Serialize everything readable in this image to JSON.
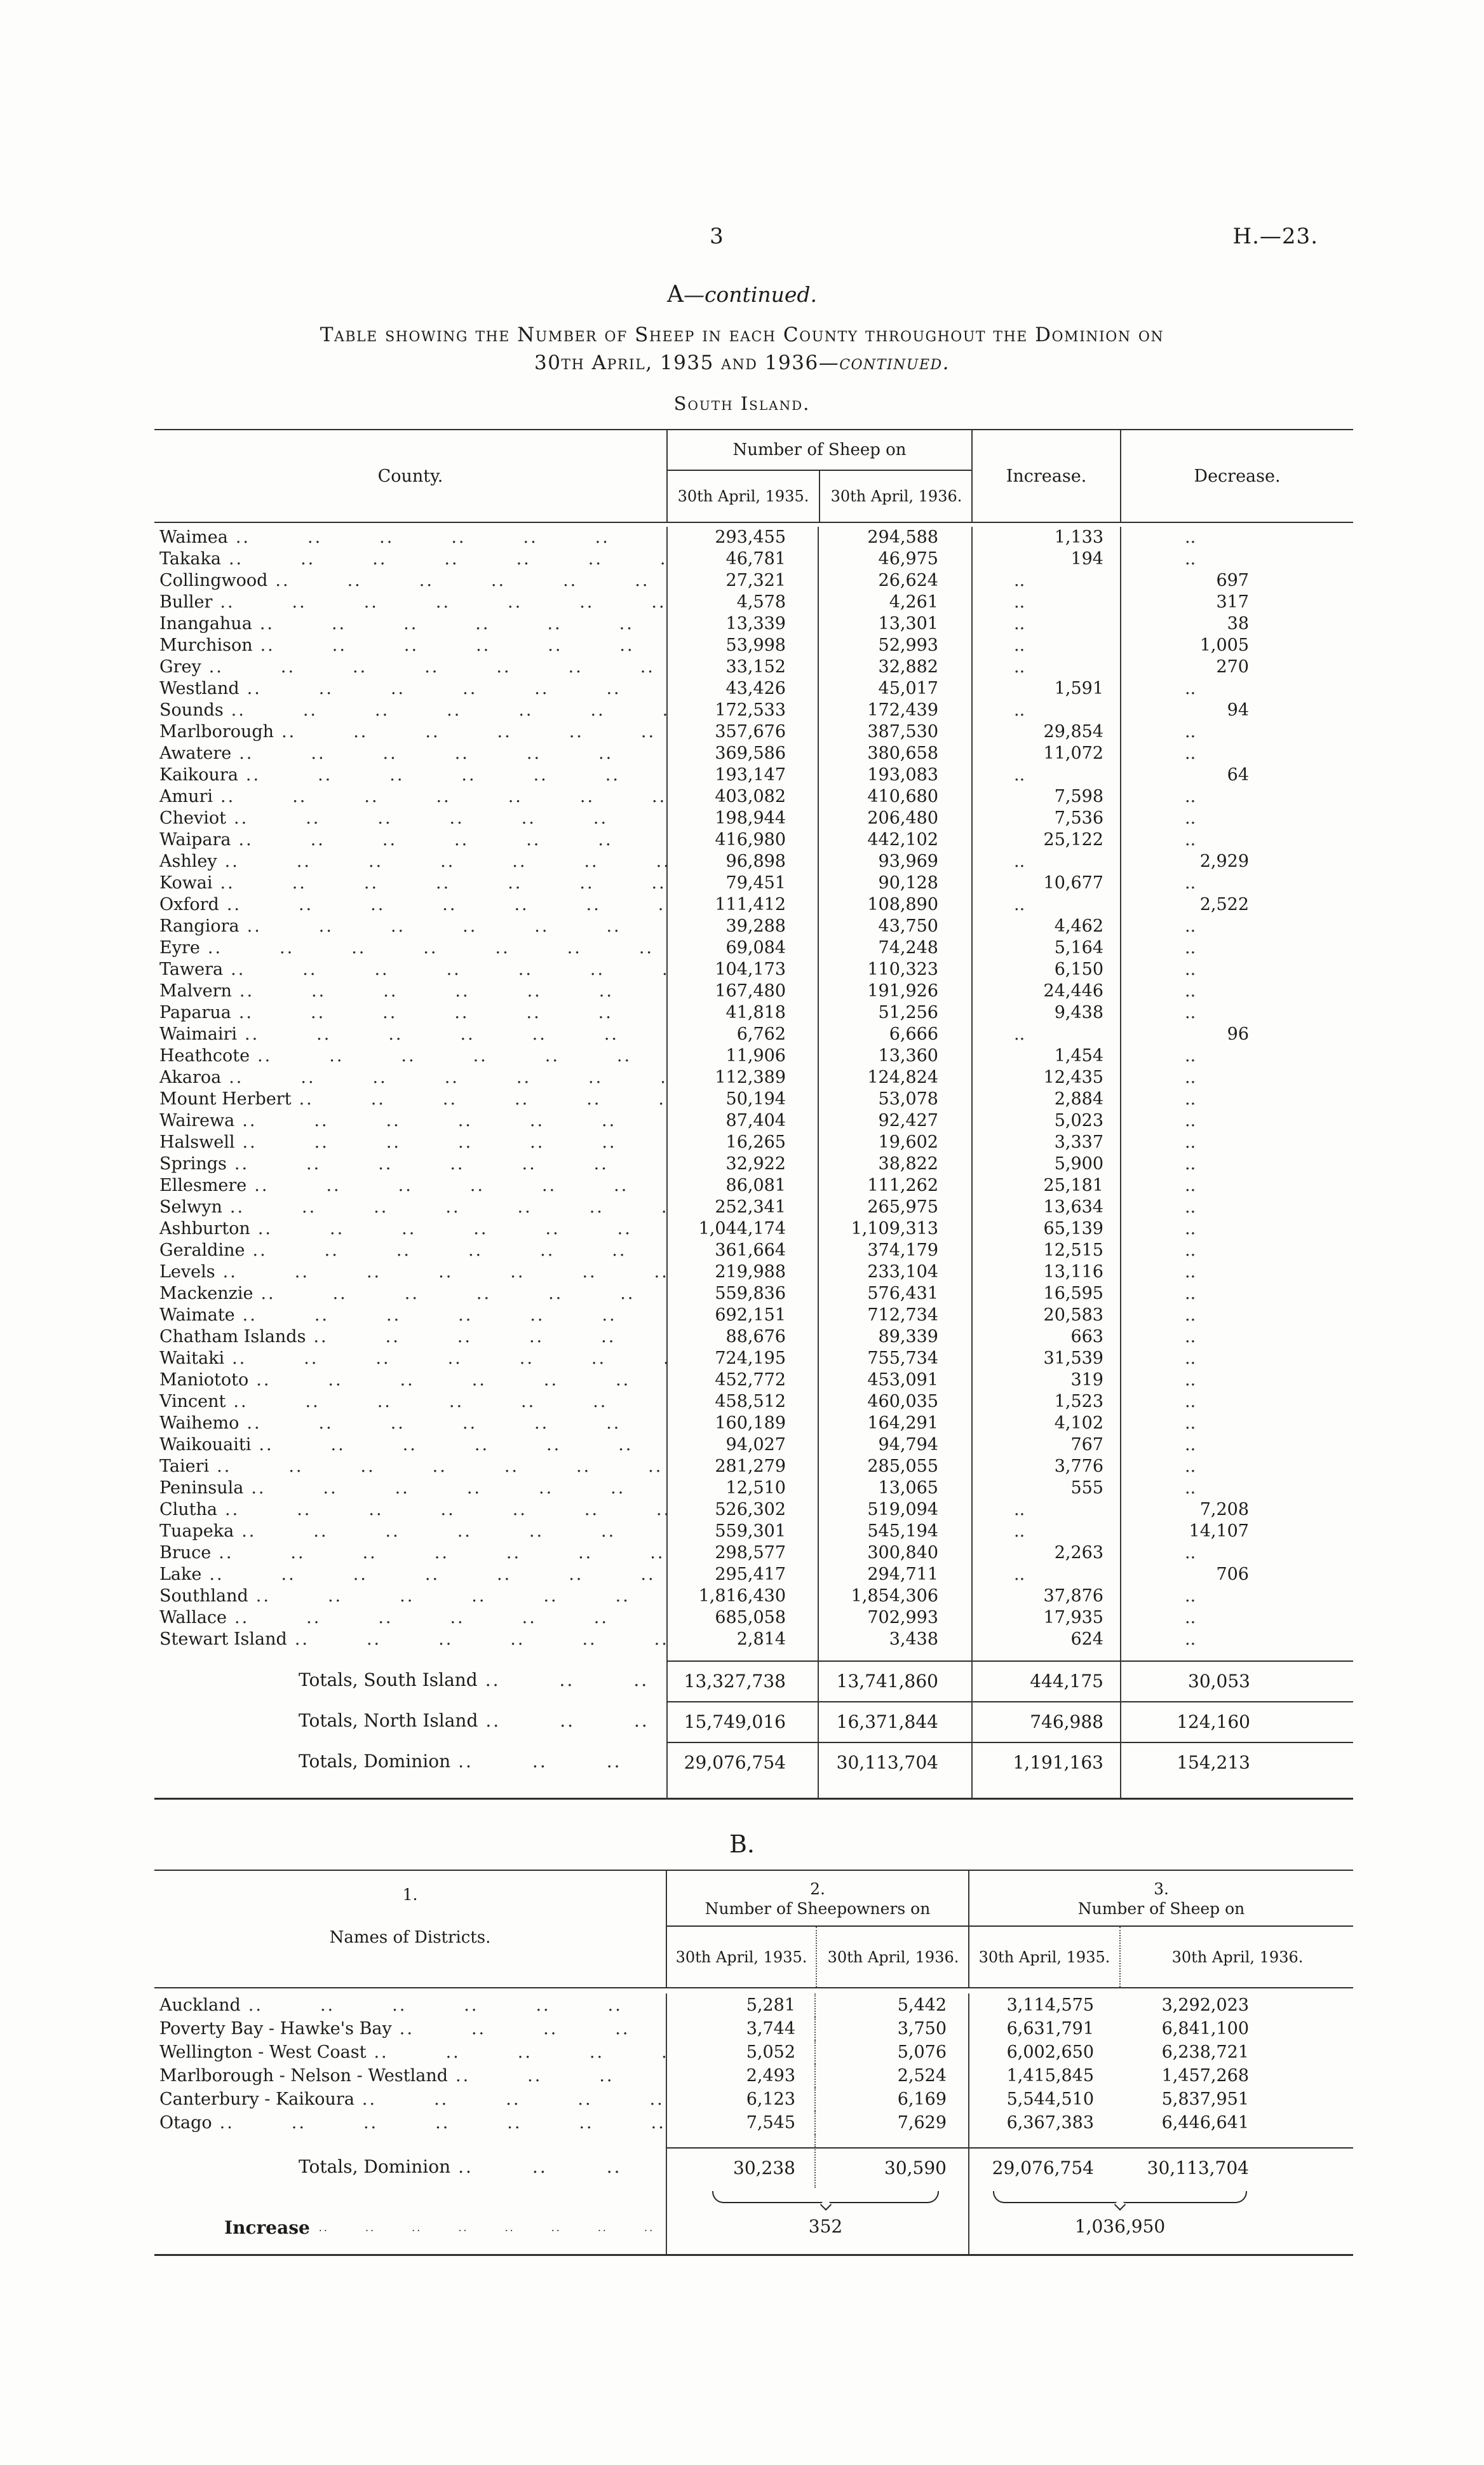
{
  "page": {
    "number": "3",
    "ref": "H.—23."
  },
  "leader_unit": "..",
  "section_a": {
    "letter": "A",
    "continued": "—continued.",
    "title_line1": "Table showing the Number of Sheep in each County throughout the Dominion on",
    "title_line2": "30th April, 1935 and 1936",
    "title_continued": "—continued.",
    "subtitle": "South Island."
  },
  "table_a": {
    "header": {
      "county": "County.",
      "sheep_group": "Number of Sheep on",
      "date_1935": "30th April, 1935.",
      "date_1936": "30th April, 1936.",
      "increase": "Increase.",
      "decrease": "Decrease."
    },
    "rows": [
      {
        "county": "Waimea",
        "v1935": "293,455",
        "v1936": "294,588",
        "increase": "1,133",
        "decrease": ".."
      },
      {
        "county": "Takaka",
        "v1935": "46,781",
        "v1936": "46,975",
        "increase": "194",
        "decrease": ".."
      },
      {
        "county": "Collingwood",
        "v1935": "27,321",
        "v1936": "26,624",
        "increase": "..",
        "decrease": "697"
      },
      {
        "county": "Buller",
        "v1935": "4,578",
        "v1936": "4,261",
        "increase": "..",
        "decrease": "317"
      },
      {
        "county": "Inangahua",
        "v1935": "13,339",
        "v1936": "13,301",
        "increase": "..",
        "decrease": "38"
      },
      {
        "county": "Murchison",
        "v1935": "53,998",
        "v1936": "52,993",
        "increase": "..",
        "decrease": "1,005"
      },
      {
        "county": "Grey",
        "v1935": "33,152",
        "v1936": "32,882",
        "increase": "..",
        "decrease": "270"
      },
      {
        "county": "Westland",
        "v1935": "43,426",
        "v1936": "45,017",
        "increase": "1,591",
        "decrease": ".."
      },
      {
        "county": "Sounds",
        "v1935": "172,533",
        "v1936": "172,439",
        "increase": "..",
        "decrease": "94"
      },
      {
        "county": "Marlborough",
        "v1935": "357,676",
        "v1936": "387,530",
        "increase": "29,854",
        "decrease": ".."
      },
      {
        "county": "Awatere",
        "v1935": "369,586",
        "v1936": "380,658",
        "increase": "11,072",
        "decrease": ".."
      },
      {
        "county": "Kaikoura",
        "v1935": "193,147",
        "v1936": "193,083",
        "increase": "..",
        "decrease": "64"
      },
      {
        "county": "Amuri",
        "v1935": "403,082",
        "v1936": "410,680",
        "increase": "7,598",
        "decrease": ".."
      },
      {
        "county": "Cheviot",
        "v1935": "198,944",
        "v1936": "206,480",
        "increase": "7,536",
        "decrease": ".."
      },
      {
        "county": "Waipara",
        "v1935": "416,980",
        "v1936": "442,102",
        "increase": "25,122",
        "decrease": ".."
      },
      {
        "county": "Ashley",
        "v1935": "96,898",
        "v1936": "93,969",
        "increase": "..",
        "decrease": "2,929"
      },
      {
        "county": "Kowai",
        "v1935": "79,451",
        "v1936": "90,128",
        "increase": "10,677",
        "decrease": ".."
      },
      {
        "county": "Oxford",
        "v1935": "111,412",
        "v1936": "108,890",
        "increase": "..",
        "decrease": "2,522"
      },
      {
        "county": "Rangiora",
        "v1935": "39,288",
        "v1936": "43,750",
        "increase": "4,462",
        "decrease": ".."
      },
      {
        "county": "Eyre",
        "v1935": "69,084",
        "v1936": "74,248",
        "increase": "5,164",
        "decrease": ".."
      },
      {
        "county": "Tawera",
        "v1935": "104,173",
        "v1936": "110,323",
        "increase": "6,150",
        "decrease": ".."
      },
      {
        "county": "Malvern",
        "v1935": "167,480",
        "v1936": "191,926",
        "increase": "24,446",
        "decrease": ".."
      },
      {
        "county": "Paparua",
        "v1935": "41,818",
        "v1936": "51,256",
        "increase": "9,438",
        "decrease": ".."
      },
      {
        "county": "Waimairi",
        "v1935": "6,762",
        "v1936": "6,666",
        "increase": "..",
        "decrease": "96"
      },
      {
        "county": "Heathcote",
        "v1935": "11,906",
        "v1936": "13,360",
        "increase": "1,454",
        "decrease": ".."
      },
      {
        "county": "Akaroa",
        "v1935": "112,389",
        "v1936": "124,824",
        "increase": "12,435",
        "decrease": ".."
      },
      {
        "county": "Mount Herbert",
        "v1935": "50,194",
        "v1936": "53,078",
        "increase": "2,884",
        "decrease": ".."
      },
      {
        "county": "Wairewa",
        "v1935": "87,404",
        "v1936": "92,427",
        "increase": "5,023",
        "decrease": ".."
      },
      {
        "county": "Halswell",
        "v1935": "16,265",
        "v1936": "19,602",
        "increase": "3,337",
        "decrease": ".."
      },
      {
        "county": "Springs",
        "v1935": "32,922",
        "v1936": "38,822",
        "increase": "5,900",
        "decrease": ".."
      },
      {
        "county": "Ellesmere",
        "v1935": "86,081",
        "v1936": "111,262",
        "increase": "25,181",
        "decrease": ".."
      },
      {
        "county": "Selwyn",
        "v1935": "252,341",
        "v1936": "265,975",
        "increase": "13,634",
        "decrease": ".."
      },
      {
        "county": "Ashburton",
        "v1935": "1,044,174",
        "v1936": "1,109,313",
        "increase": "65,139",
        "decrease": ".."
      },
      {
        "county": "Geraldine",
        "v1935": "361,664",
        "v1936": "374,179",
        "increase": "12,515",
        "decrease": ".."
      },
      {
        "county": "Levels",
        "v1935": "219,988",
        "v1936": "233,104",
        "increase": "13,116",
        "decrease": ".."
      },
      {
        "county": "Mackenzie",
        "v1935": "559,836",
        "v1936": "576,431",
        "increase": "16,595",
        "decrease": ".."
      },
      {
        "county": "Waimate",
        "v1935": "692,151",
        "v1936": "712,734",
        "increase": "20,583",
        "decrease": ".."
      },
      {
        "county": "Chatham Islands",
        "v1935": "88,676",
        "v1936": "89,339",
        "increase": "663",
        "decrease": ".."
      },
      {
        "county": "Waitaki",
        "v1935": "724,195",
        "v1936": "755,734",
        "increase": "31,539",
        "decrease": ".."
      },
      {
        "county": "Maniototo",
        "v1935": "452,772",
        "v1936": "453,091",
        "increase": "319",
        "decrease": ".."
      },
      {
        "county": "Vincent",
        "v1935": "458,512",
        "v1936": "460,035",
        "increase": "1,523",
        "decrease": ".."
      },
      {
        "county": "Waihemo",
        "v1935": "160,189",
        "v1936": "164,291",
        "increase": "4,102",
        "decrease": ".."
      },
      {
        "county": "Waikouaiti",
        "v1935": "94,027",
        "v1936": "94,794",
        "increase": "767",
        "decrease": ".."
      },
      {
        "county": "Taieri",
        "v1935": "281,279",
        "v1936": "285,055",
        "increase": "3,776",
        "decrease": ".."
      },
      {
        "county": "Peninsula",
        "v1935": "12,510",
        "v1936": "13,065",
        "increase": "555",
        "decrease": ".."
      },
      {
        "county": "Clutha",
        "v1935": "526,302",
        "v1936": "519,094",
        "increase": "..",
        "decrease": "7,208"
      },
      {
        "county": "Tuapeka",
        "v1935": "559,301",
        "v1936": "545,194",
        "increase": "..",
        "decrease": "14,107"
      },
      {
        "county": "Bruce",
        "v1935": "298,577",
        "v1936": "300,840",
        "increase": "2,263",
        "decrease": ".."
      },
      {
        "county": "Lake",
        "v1935": "295,417",
        "v1936": "294,711",
        "increase": "..",
        "decrease": "706"
      },
      {
        "county": "Southland",
        "v1935": "1,816,430",
        "v1936": "1,854,306",
        "increase": "37,876",
        "decrease": ".."
      },
      {
        "county": "Wallace",
        "v1935": "685,058",
        "v1936": "702,993",
        "increase": "17,935",
        "decrease": ".."
      },
      {
        "county": "Stewart Island",
        "v1935": "2,814",
        "v1936": "3,438",
        "increase": "624",
        "decrease": ".."
      }
    ],
    "totals": [
      {
        "label": "Totals, South Island",
        "v1935": "13,327,738",
        "v1936": "13,741,860",
        "increase": "444,175",
        "decrease": "30,053"
      },
      {
        "label": "Totals, North Island",
        "v1935": "15,749,016",
        "v1936": "16,371,844",
        "increase": "746,988",
        "decrease": "124,160"
      },
      {
        "label": "Totals, Dominion",
        "v1935": "29,076,754",
        "v1936": "30,113,704",
        "increase": "1,191,163",
        "decrease": "154,213"
      }
    ]
  },
  "section_b": {
    "heading": "B."
  },
  "table_b": {
    "header": {
      "no1": "1.",
      "no2": "2.",
      "no3": "3.",
      "districts": "Names of Districts.",
      "owners_group": "Number of Sheepowners on",
      "sheep_group": "Number of Sheep on",
      "date_1935": "30th April, 1935.",
      "date_1936": "30th April, 1936."
    },
    "rows": [
      {
        "district": "Auckland",
        "o1935": "5,281",
        "o1936": "5,442",
        "s1935": "3,114,575",
        "s1936": "3,292,023"
      },
      {
        "district": "Poverty Bay - Hawke's Bay",
        "o1935": "3,744",
        "o1936": "3,750",
        "s1935": "6,631,791",
        "s1936": "6,841,100"
      },
      {
        "district": "Wellington - West Coast",
        "o1935": "5,052",
        "o1936": "5,076",
        "s1935": "6,002,650",
        "s1936": "6,238,721"
      },
      {
        "district": "Marlborough - Nelson - Westland",
        "o1935": "2,493",
        "o1936": "2,524",
        "s1935": "1,415,845",
        "s1936": "1,457,268"
      },
      {
        "district": "Canterbury - Kaikoura",
        "o1935": "6,123",
        "o1936": "6,169",
        "s1935": "5,544,510",
        "s1936": "5,837,951"
      },
      {
        "district": "Otago",
        "o1935": "7,545",
        "o1936": "7,629",
        "s1935": "6,367,383",
        "s1936": "6,446,641"
      }
    ],
    "total": {
      "label": "Totals, Dominion",
      "o1935": "30,238",
      "o1936": "30,590",
      "s1935": "29,076,754",
      "s1936": "30,113,704"
    },
    "increase": {
      "label": "Increase",
      "owners": "352",
      "sheep": "1,036,950"
    }
  }
}
